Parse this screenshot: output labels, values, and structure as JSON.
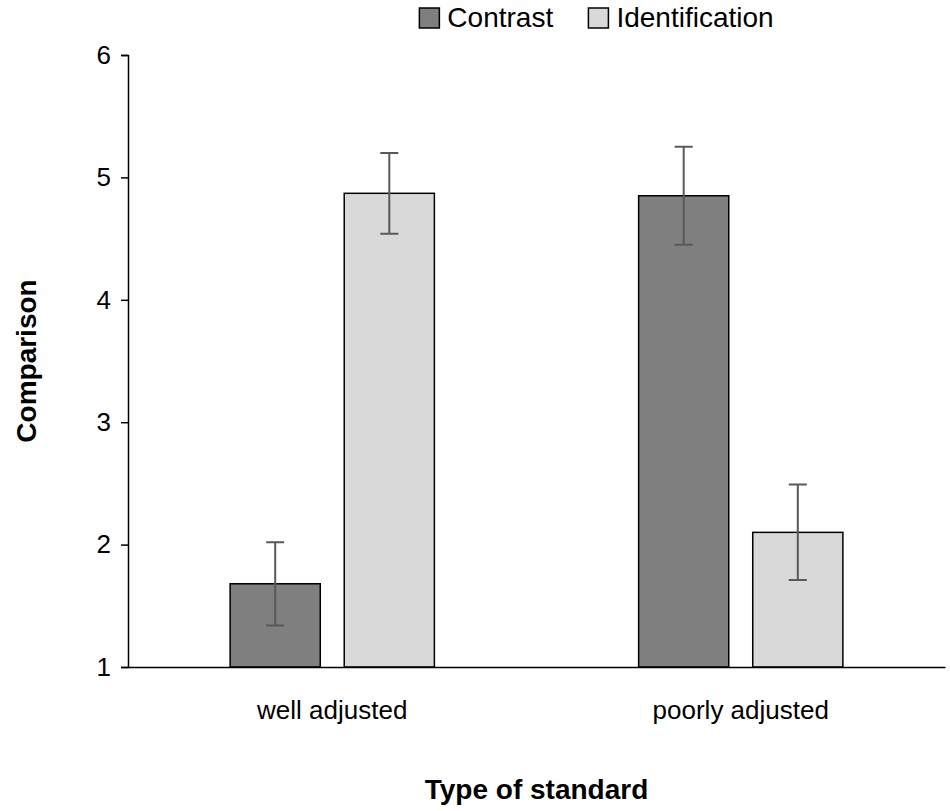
{
  "chart_data": {
    "type": "bar",
    "x_label": "Type of standard",
    "y_label": "Comparison",
    "categories": [
      "well adjusted",
      "poorly adjusted"
    ],
    "series": [
      {
        "name": "Contrast",
        "color": "#7f7f7f",
        "values": [
          1.68,
          4.85
        ],
        "errors": [
          0.34,
          0.4
        ]
      },
      {
        "name": "Identification",
        "color": "#d9d9d9",
        "values": [
          4.87,
          2.1
        ],
        "errors": [
          0.33,
          0.39
        ]
      }
    ],
    "ylim": [
      1,
      6
    ],
    "yticks": [
      1,
      2,
      3,
      4,
      5,
      6
    ],
    "grid": false,
    "legend": "top"
  }
}
